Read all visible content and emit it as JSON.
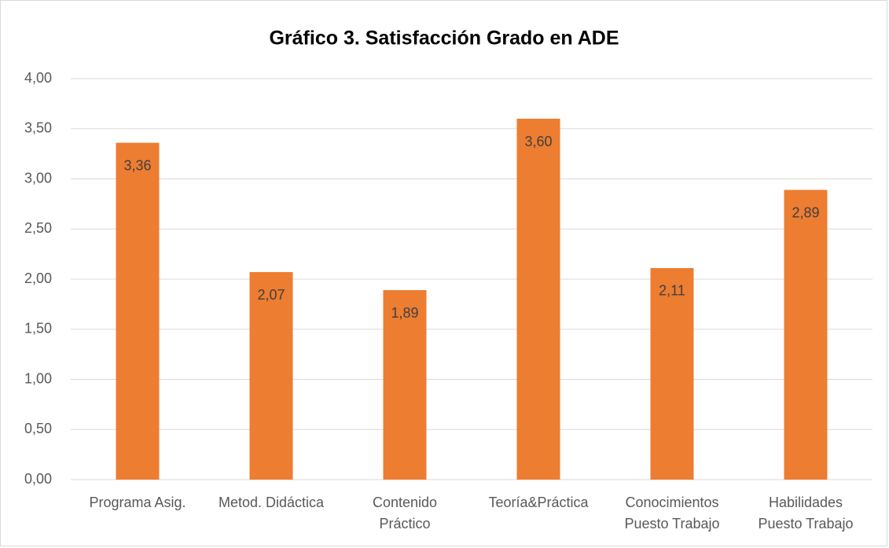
{
  "chart_data": {
    "type": "bar",
    "title": "Gráfico 3. Satisfacción Grado en ADE",
    "categories": [
      "Programa Asig.",
      "Metod. Didáctica",
      "Contenido\nPráctico",
      "Teoría&Práctica",
      "Conocimientos\nPuesto Trabajo",
      "Habilidades\nPuesto Trabajo"
    ],
    "values": [
      3.36,
      2.07,
      1.89,
      3.6,
      2.11,
      2.89
    ],
    "value_labels": [
      "3,36",
      "2,07",
      "1,89",
      "3,60",
      "2,11",
      "2,89"
    ],
    "color": "#ed7d31",
    "ylim": [
      0,
      4
    ],
    "yticks": [
      {
        "value": 0,
        "label": "0,00"
      },
      {
        "value": 0.5,
        "label": "0,50"
      },
      {
        "value": 1,
        "label": "1,00"
      },
      {
        "value": 1.5,
        "label": "1,50"
      },
      {
        "value": 2,
        "label": "2,00"
      },
      {
        "value": 2.5,
        "label": "2,50"
      },
      {
        "value": 3,
        "label": "3,00"
      },
      {
        "value": 3.5,
        "label": "3,50"
      },
      {
        "value": 4,
        "label": "4,00"
      }
    ],
    "grid": true
  }
}
